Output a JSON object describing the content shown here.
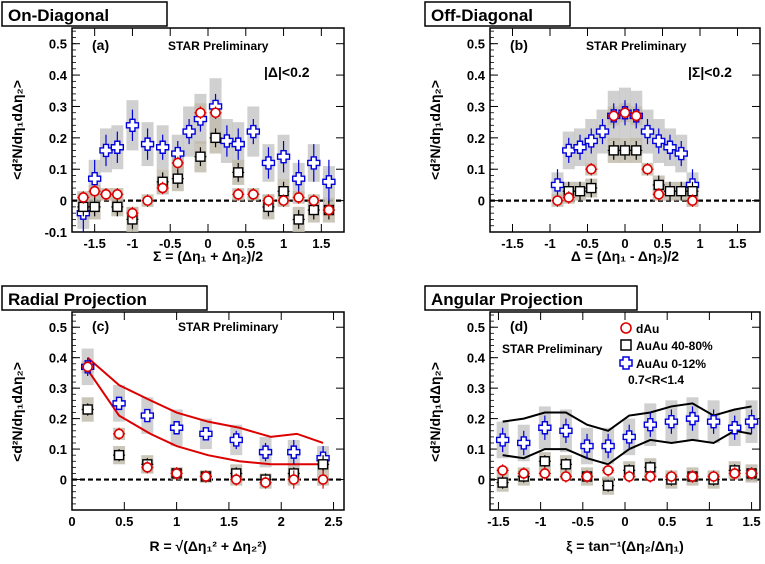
{
  "chart_data": [
    {
      "id": "p1",
      "type": "scatter",
      "title": "On-Diagonal",
      "panel_label": "(a)",
      "annotation": "STAR Preliminary",
      "cut_label": "|Δ|<0.2",
      "xlabel": "Σ = (Δη₁ + Δη₂)/2",
      "ylabel": "<d²N/dη₁dΔη₂>",
      "xlim": [
        -1.8,
        1.8
      ],
      "ylim": [
        -0.1,
        0.55
      ],
      "xticks": [
        "-1.5",
        "-1",
        "-0.5",
        "0",
        "0.5",
        "1",
        "1.5"
      ],
      "yticks": [
        "-0.1",
        "0",
        "0.1",
        "0.2",
        "0.3",
        "0.4",
        "0.5"
      ],
      "series": [
        {
          "marker": "cross",
          "color": "#0000dd",
          "x": [
            -1.65,
            -1.5,
            -1.35,
            -1.2,
            -1.0,
            -0.8,
            -0.6,
            -0.4,
            -0.25,
            -0.1,
            0.1,
            0.25,
            0.4,
            0.6,
            0.8,
            1.0,
            1.2,
            1.4,
            1.6
          ],
          "y": [
            -0.04,
            0.07,
            0.16,
            0.17,
            0.24,
            0.18,
            0.17,
            0.15,
            0.22,
            0.26,
            0.3,
            0.19,
            0.18,
            0.22,
            0.12,
            0.14,
            0.07,
            0.12,
            0.06
          ],
          "err": [
            0.06,
            0.06,
            0.05,
            0.05,
            0.05,
            0.05,
            0.04,
            0.04,
            0.04,
            0.04,
            0.04,
            0.05,
            0.05,
            0.04,
            0.05,
            0.05,
            0.06,
            0.06,
            0.07
          ],
          "sys": [
            0.05,
            0.06,
            0.07,
            0.07,
            0.08,
            0.07,
            0.07,
            0.06,
            0.08,
            0.08,
            0.09,
            0.07,
            0.07,
            0.08,
            0.06,
            0.07,
            0.05,
            0.06,
            0.05
          ]
        },
        {
          "marker": "square",
          "color": "#000000",
          "x": [
            -1.65,
            -1.5,
            -1.2,
            -1.0,
            -0.6,
            -0.4,
            -0.1,
            0.1,
            0.4,
            0.8,
            1.0,
            1.2,
            1.4,
            1.6
          ],
          "y": [
            -0.02,
            -0.02,
            -0.02,
            -0.06,
            0.06,
            0.07,
            0.14,
            0.2,
            0.09,
            -0.02,
            0.03,
            -0.06,
            -0.03,
            -0.03
          ],
          "err": [
            0.03,
            0.03,
            0.03,
            0.03,
            0.03,
            0.03,
            0.03,
            0.03,
            0.03,
            0.03,
            0.03,
            0.03,
            0.03,
            0.03
          ],
          "sys": [
            0.04,
            0.04,
            0.03,
            0.04,
            0.04,
            0.04,
            0.05,
            0.05,
            0.04,
            0.04,
            0.04,
            0.04,
            0.04,
            0.04
          ]
        },
        {
          "marker": "circle",
          "color": "#dd0000",
          "x": [
            -1.65,
            -1.5,
            -1.35,
            -1.2,
            -1.0,
            -0.8,
            -0.6,
            -0.4,
            -0.1,
            0.1,
            0.4,
            0.6,
            0.8,
            1.0,
            1.2,
            1.4,
            1.6
          ],
          "y": [
            0.01,
            0.03,
            0.02,
            0.02,
            -0.04,
            0.0,
            0.04,
            0.12,
            0.28,
            0.28,
            0.02,
            0.02,
            0.0,
            0.0,
            0.01,
            0.0,
            -0.03
          ],
          "err": [
            0.02,
            0.02,
            0.02,
            0.02,
            0.02,
            0.02,
            0.02,
            0.02,
            0.02,
            0.02,
            0.02,
            0.02,
            0.02,
            0.02,
            0.02,
            0.02,
            0.02
          ],
          "sys": [
            0.02,
            0.02,
            0.02,
            0.02,
            0.02,
            0.02,
            0.02,
            0.02,
            0.03,
            0.03,
            0.02,
            0.02,
            0.02,
            0.02,
            0.02,
            0.02,
            0.02
          ]
        }
      ]
    },
    {
      "id": "p2",
      "type": "scatter",
      "title": "Off-Diagonal",
      "panel_label": "(b)",
      "annotation": "STAR Preliminary",
      "cut_label": "|Σ|<0.2",
      "xlabel": "Δ = (Δη₁ - Δη₂)/2",
      "ylabel": "<d²N/dη₁dΔη₂>",
      "xlim": [
        -1.8,
        1.8
      ],
      "ylim": [
        -0.1,
        0.55
      ],
      "xticks": [
        "-1.5",
        "-1",
        "-0.5",
        "0",
        "0.5",
        "1",
        "1.5"
      ],
      "yticks": [
        "0",
        "0.1",
        "0.2",
        "0.3",
        "0.4",
        "0.5"
      ],
      "series": [
        {
          "marker": "cross",
          "color": "#0000dd",
          "x": [
            -0.9,
            -0.75,
            -0.6,
            -0.45,
            -0.3,
            -0.15,
            0.0,
            0.15,
            0.3,
            0.45,
            0.6,
            0.75,
            0.9
          ],
          "y": [
            0.05,
            0.16,
            0.17,
            0.19,
            0.22,
            0.27,
            0.28,
            0.27,
            0.22,
            0.19,
            0.17,
            0.15,
            0.05
          ],
          "err": [
            0.05,
            0.04,
            0.04,
            0.04,
            0.04,
            0.04,
            0.04,
            0.04,
            0.04,
            0.04,
            0.04,
            0.04,
            0.05
          ],
          "sys": [
            0.04,
            0.06,
            0.06,
            0.07,
            0.07,
            0.08,
            0.08,
            0.08,
            0.07,
            0.07,
            0.06,
            0.06,
            0.04
          ]
        },
        {
          "marker": "square",
          "color": "#000000",
          "x": [
            -0.75,
            -0.6,
            -0.45,
            -0.15,
            0.0,
            0.15,
            0.45,
            0.6,
            0.75,
            0.9
          ],
          "y": [
            0.03,
            0.03,
            0.04,
            0.16,
            0.16,
            0.16,
            0.05,
            0.03,
            0.03,
            0.03
          ],
          "err": [
            0.03,
            0.03,
            0.03,
            0.03,
            0.03,
            0.03,
            0.03,
            0.03,
            0.03,
            0.03
          ],
          "sys": [
            0.03,
            0.03,
            0.03,
            0.04,
            0.04,
            0.04,
            0.03,
            0.03,
            0.03,
            0.03
          ]
        },
        {
          "marker": "circle",
          "color": "#dd0000",
          "x": [
            -0.9,
            -0.75,
            -0.45,
            -0.15,
            0.0,
            0.15,
            0.3,
            0.45,
            0.9
          ],
          "y": [
            0.0,
            0.01,
            0.1,
            0.27,
            0.28,
            0.27,
            0.1,
            0.02,
            0.0
          ],
          "err": [
            0.02,
            0.02,
            0.02,
            0.02,
            0.02,
            0.02,
            0.02,
            0.02,
            0.02
          ],
          "sys": [
            0.02,
            0.02,
            0.02,
            0.03,
            0.03,
            0.03,
            0.02,
            0.02,
            0.02
          ]
        }
      ]
    },
    {
      "id": "p3",
      "type": "scatter",
      "title": "Radial Projection",
      "panel_label": "(c)",
      "annotation": "STAR Preliminary",
      "xlabel": "R = √(Δη₁² + Δη₂²)",
      "ylabel": "<d²N/dη₁dΔη₂>",
      "xlim": [
        0,
        2.6
      ],
      "ylim": [
        -0.1,
        0.55
      ],
      "xticks": [
        "0",
        "0.5",
        "1",
        "1.5",
        "2",
        "2.5"
      ],
      "yticks": [
        "0",
        "0.1",
        "0.2",
        "0.3",
        "0.4",
        "0.5"
      ],
      "bands": [
        {
          "color": "#dd0000",
          "x": [
            0.15,
            0.45,
            0.75,
            1.0,
            1.3,
            1.6,
            1.9,
            2.15,
            2.4
          ],
          "y": [
            0.4,
            0.31,
            0.26,
            0.22,
            0.19,
            0.17,
            0.14,
            0.15,
            0.12
          ]
        },
        {
          "color": "#dd0000",
          "x": [
            0.15,
            0.45,
            0.75,
            1.0,
            1.3,
            1.6,
            1.9,
            2.15,
            2.4
          ],
          "y": [
            0.36,
            0.21,
            0.15,
            0.11,
            0.08,
            0.06,
            0.05,
            0.05,
            0.05
          ]
        }
      ],
      "series": [
        {
          "marker": "cross",
          "color": "#0000dd",
          "x": [
            0.15,
            0.45,
            0.72,
            1.0,
            1.28,
            1.57,
            1.85,
            2.12,
            2.4
          ],
          "y": [
            0.37,
            0.25,
            0.21,
            0.17,
            0.15,
            0.13,
            0.09,
            0.09,
            0.07
          ],
          "err": [
            0.03,
            0.02,
            0.02,
            0.02,
            0.02,
            0.03,
            0.03,
            0.04,
            0.04
          ],
          "sys": [
            0.06,
            0.06,
            0.06,
            0.06,
            0.05,
            0.05,
            0.05,
            0.04,
            0.04
          ]
        },
        {
          "marker": "square",
          "color": "#000000",
          "x": [
            0.15,
            0.45,
            0.72,
            1.0,
            1.28,
            1.57,
            1.85,
            2.12,
            2.4
          ],
          "y": [
            0.23,
            0.08,
            0.05,
            0.02,
            0.01,
            0.02,
            0.0,
            0.02,
            0.05
          ],
          "err": [
            0.02,
            0.02,
            0.02,
            0.02,
            0.02,
            0.02,
            0.02,
            0.02,
            0.03
          ],
          "sys": [
            0.04,
            0.03,
            0.03,
            0.02,
            0.02,
            0.03,
            0.02,
            0.03,
            0.03
          ]
        },
        {
          "marker": "circle",
          "color": "#dd0000",
          "x": [
            0.15,
            0.45,
            0.72,
            1.0,
            1.28,
            1.57,
            1.85,
            2.12,
            2.4
          ],
          "y": [
            0.37,
            0.15,
            0.04,
            0.02,
            0.01,
            0.0,
            -0.01,
            0.0,
            0.0
          ],
          "err": [
            0.02,
            0.02,
            0.02,
            0.02,
            0.02,
            0.02,
            0.02,
            0.03,
            0.03
          ],
          "sys": [
            0.02,
            0.02,
            0.02,
            0.02,
            0.02,
            0.02,
            0.02,
            0.02,
            0.02
          ]
        }
      ]
    },
    {
      "id": "p4",
      "type": "scatter",
      "title": "Angular Projection",
      "panel_label": "(d)",
      "annotation": "STAR Preliminary",
      "cut_label": "0.7<R<1.4",
      "legend": [
        "dAu",
        "AuAu 40-80%",
        "AuAu 0-12%"
      ],
      "xlabel": "ξ = tan⁻¹(Δη₂/Δη₁)",
      "ylabel": "<d²N/dη₁dΔη₂>",
      "xlim": [
        -1.6,
        1.6
      ],
      "ylim": [
        -0.1,
        0.55
      ],
      "xticks": [
        "-1.5",
        "-1",
        "-0.5",
        "0",
        "0.5",
        "1",
        "1.5"
      ],
      "yticks": [
        "0",
        "0.1",
        "0.2",
        "0.3",
        "0.4",
        "0.5"
      ],
      "bands": [
        {
          "color": "#000000",
          "x": [
            -1.45,
            -1.2,
            -0.95,
            -0.7,
            -0.45,
            -0.2,
            0.05,
            0.3,
            0.55,
            0.8,
            1.05,
            1.3,
            1.5
          ],
          "y": [
            0.19,
            0.2,
            0.22,
            0.22,
            0.18,
            0.16,
            0.21,
            0.22,
            0.24,
            0.25,
            0.21,
            0.23,
            0.24
          ]
        },
        {
          "color": "#000000",
          "x": [
            -1.45,
            -1.2,
            -0.95,
            -0.7,
            -0.45,
            -0.2,
            0.05,
            0.3,
            0.55,
            0.8,
            1.05,
            1.3,
            1.5
          ],
          "y": [
            0.08,
            0.07,
            0.1,
            0.1,
            0.07,
            0.05,
            0.1,
            0.13,
            0.12,
            0.13,
            0.12,
            0.16,
            0.15
          ]
        }
      ],
      "series": [
        {
          "marker": "cross",
          "color": "#0000dd",
          "x": [
            -1.45,
            -1.2,
            -0.95,
            -0.7,
            -0.45,
            -0.2,
            0.05,
            0.3,
            0.55,
            0.8,
            1.05,
            1.3,
            1.5
          ],
          "y": [
            0.13,
            0.12,
            0.17,
            0.16,
            0.11,
            0.11,
            0.14,
            0.18,
            0.19,
            0.2,
            0.19,
            0.17,
            0.19
          ],
          "err": [
            0.04,
            0.04,
            0.04,
            0.04,
            0.04,
            0.04,
            0.04,
            0.04,
            0.04,
            0.04,
            0.04,
            0.04,
            0.04
          ],
          "sys": [
            0.06,
            0.06,
            0.07,
            0.07,
            0.06,
            0.06,
            0.06,
            0.07,
            0.07,
            0.07,
            0.07,
            0.06,
            0.07
          ]
        },
        {
          "marker": "square",
          "color": "#000000",
          "x": [
            -1.45,
            -1.2,
            -0.95,
            -0.7,
            -0.45,
            -0.2,
            0.05,
            0.3,
            0.55,
            0.8,
            1.05,
            1.3,
            1.5
          ],
          "y": [
            -0.01,
            0.01,
            0.06,
            0.05,
            0.01,
            -0.02,
            0.03,
            0.04,
            0.0,
            0.01,
            0.0,
            0.03,
            0.02
          ],
          "err": [
            0.02,
            0.02,
            0.02,
            0.02,
            0.02,
            0.02,
            0.02,
            0.02,
            0.02,
            0.02,
            0.02,
            0.02,
            0.02
          ],
          "sys": [
            0.03,
            0.03,
            0.03,
            0.03,
            0.03,
            0.03,
            0.03,
            0.03,
            0.03,
            0.03,
            0.03,
            0.03,
            0.03
          ]
        },
        {
          "marker": "circle",
          "color": "#dd0000",
          "x": [
            -1.45,
            -1.2,
            -0.95,
            -0.7,
            -0.45,
            -0.2,
            0.05,
            0.3,
            0.55,
            0.8,
            1.05,
            1.3,
            1.5
          ],
          "y": [
            0.03,
            0.02,
            0.02,
            0.01,
            0.01,
            0.03,
            0.01,
            0.01,
            0.01,
            0.01,
            0.01,
            0.02,
            0.02
          ],
          "err": [
            0.02,
            0.02,
            0.02,
            0.02,
            0.02,
            0.02,
            0.02,
            0.02,
            0.02,
            0.02,
            0.02,
            0.02,
            0.02
          ],
          "sys": [
            0.01,
            0.01,
            0.01,
            0.01,
            0.01,
            0.01,
            0.01,
            0.01,
            0.01,
            0.01,
            0.01,
            0.01,
            0.01
          ]
        }
      ]
    }
  ]
}
